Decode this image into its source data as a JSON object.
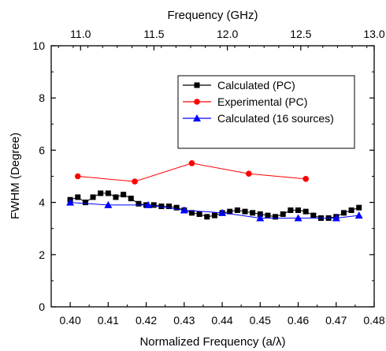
{
  "chart_data": {
    "type": "line",
    "xlabel": "Normalized Frequency (a/λ)",
    "ylabel": "FWHM (Degree)",
    "x2label": "Frequency (GHz)",
    "xlim": [
      0.395,
      0.48
    ],
    "ylim": [
      0,
      10
    ],
    "x2lim": [
      10.8,
      13.0
    ],
    "xticks": [
      0.4,
      0.41,
      0.42,
      0.43,
      0.44,
      0.45,
      0.46,
      0.47,
      0.48
    ],
    "xtick_labels": [
      "0.40",
      "0.41",
      "0.42",
      "0.43",
      "0.44",
      "0.45",
      "0.46",
      "0.47",
      "0.48"
    ],
    "yticks": [
      0,
      2,
      4,
      6,
      8,
      10
    ],
    "ytick_labels": [
      "0",
      "2",
      "4",
      "6",
      "8",
      "10"
    ],
    "x2ticks": [
      11.0,
      11.5,
      12.0,
      12.5,
      13.0
    ],
    "x2tick_labels": [
      "11.0",
      "11.5",
      "12.0",
      "12.5",
      "13.0"
    ],
    "grid": false,
    "legend_position": "top-right",
    "series": [
      {
        "name": "Calculated (PC)",
        "color": "#000000",
        "marker": "square",
        "x": [
          0.4,
          0.402,
          0.404,
          0.406,
          0.408,
          0.41,
          0.412,
          0.414,
          0.416,
          0.418,
          0.42,
          0.422,
          0.424,
          0.426,
          0.428,
          0.43,
          0.432,
          0.434,
          0.436,
          0.438,
          0.44,
          0.442,
          0.444,
          0.446,
          0.448,
          0.45,
          0.452,
          0.454,
          0.456,
          0.458,
          0.46,
          0.462,
          0.464,
          0.466,
          0.468,
          0.47,
          0.472,
          0.474,
          0.476
        ],
        "y": [
          4.1,
          4.2,
          4.0,
          4.2,
          4.35,
          4.35,
          4.2,
          4.3,
          4.15,
          3.95,
          3.9,
          3.9,
          3.85,
          3.85,
          3.8,
          3.7,
          3.6,
          3.55,
          3.45,
          3.5,
          3.6,
          3.65,
          3.7,
          3.65,
          3.6,
          3.55,
          3.5,
          3.45,
          3.55,
          3.7,
          3.7,
          3.65,
          3.5,
          3.4,
          3.4,
          3.45,
          3.6,
          3.7,
          3.8
        ]
      },
      {
        "name": "Experimental (PC)",
        "color": "#ff0000",
        "marker": "circle",
        "x": [
          0.402,
          0.417,
          0.432,
          0.447,
          0.462
        ],
        "y": [
          5.0,
          4.8,
          5.5,
          5.1,
          4.9
        ]
      },
      {
        "name": "Calculated (16 sources)",
        "color": "#0000ff",
        "marker": "triangle",
        "x": [
          0.4,
          0.41,
          0.4205,
          0.43,
          0.44,
          0.45,
          0.46,
          0.47,
          0.476
        ],
        "y": [
          4.0,
          3.9,
          3.9,
          3.7,
          3.6,
          3.4,
          3.4,
          3.4,
          3.5
        ]
      }
    ]
  }
}
